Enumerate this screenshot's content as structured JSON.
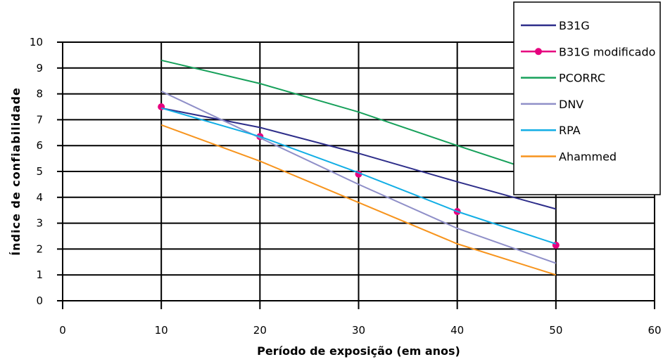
{
  "chart_data": {
    "type": "line",
    "title": "",
    "xlabel": "Período de exposição (em anos)",
    "ylabel": "Índice de confiabilidade",
    "xlim": [
      0,
      60
    ],
    "ylim": [
      0,
      10
    ],
    "x_ticks": [
      0,
      10,
      20,
      30,
      40,
      50,
      60
    ],
    "y_ticks": [
      0,
      1,
      2,
      3,
      4,
      5,
      6,
      7,
      8,
      9,
      10
    ],
    "grid": true,
    "legend_position": "top-right",
    "x": [
      10,
      20,
      30,
      40,
      50
    ],
    "series": [
      {
        "name": "B31G",
        "values": [
          7.45,
          6.7,
          5.7,
          4.6,
          3.55
        ],
        "color": "#2e2e8a",
        "marker": "none"
      },
      {
        "name": "B31G modificado",
        "values": [
          7.5,
          6.35,
          4.9,
          3.45,
          2.15
        ],
        "color": "#e6007e",
        "marker": "circle"
      },
      {
        "name": "PCORRC",
        "values": [
          9.3,
          8.4,
          7.3,
          6.0,
          4.75
        ],
        "color": "#16a05a",
        "marker": "none"
      },
      {
        "name": "DNV",
        "values": [
          8.1,
          6.3,
          4.5,
          2.8,
          1.45
        ],
        "color": "#8f8fc8",
        "marker": "none"
      },
      {
        "name": "RPA",
        "values": [
          7.45,
          6.35,
          4.95,
          3.45,
          2.2
        ],
        "color": "#12aee5",
        "marker": "none"
      },
      {
        "name": "Ahammed",
        "values": [
          6.8,
          5.4,
          3.8,
          2.2,
          1.0
        ],
        "color": "#f7941d",
        "marker": "none"
      }
    ]
  }
}
